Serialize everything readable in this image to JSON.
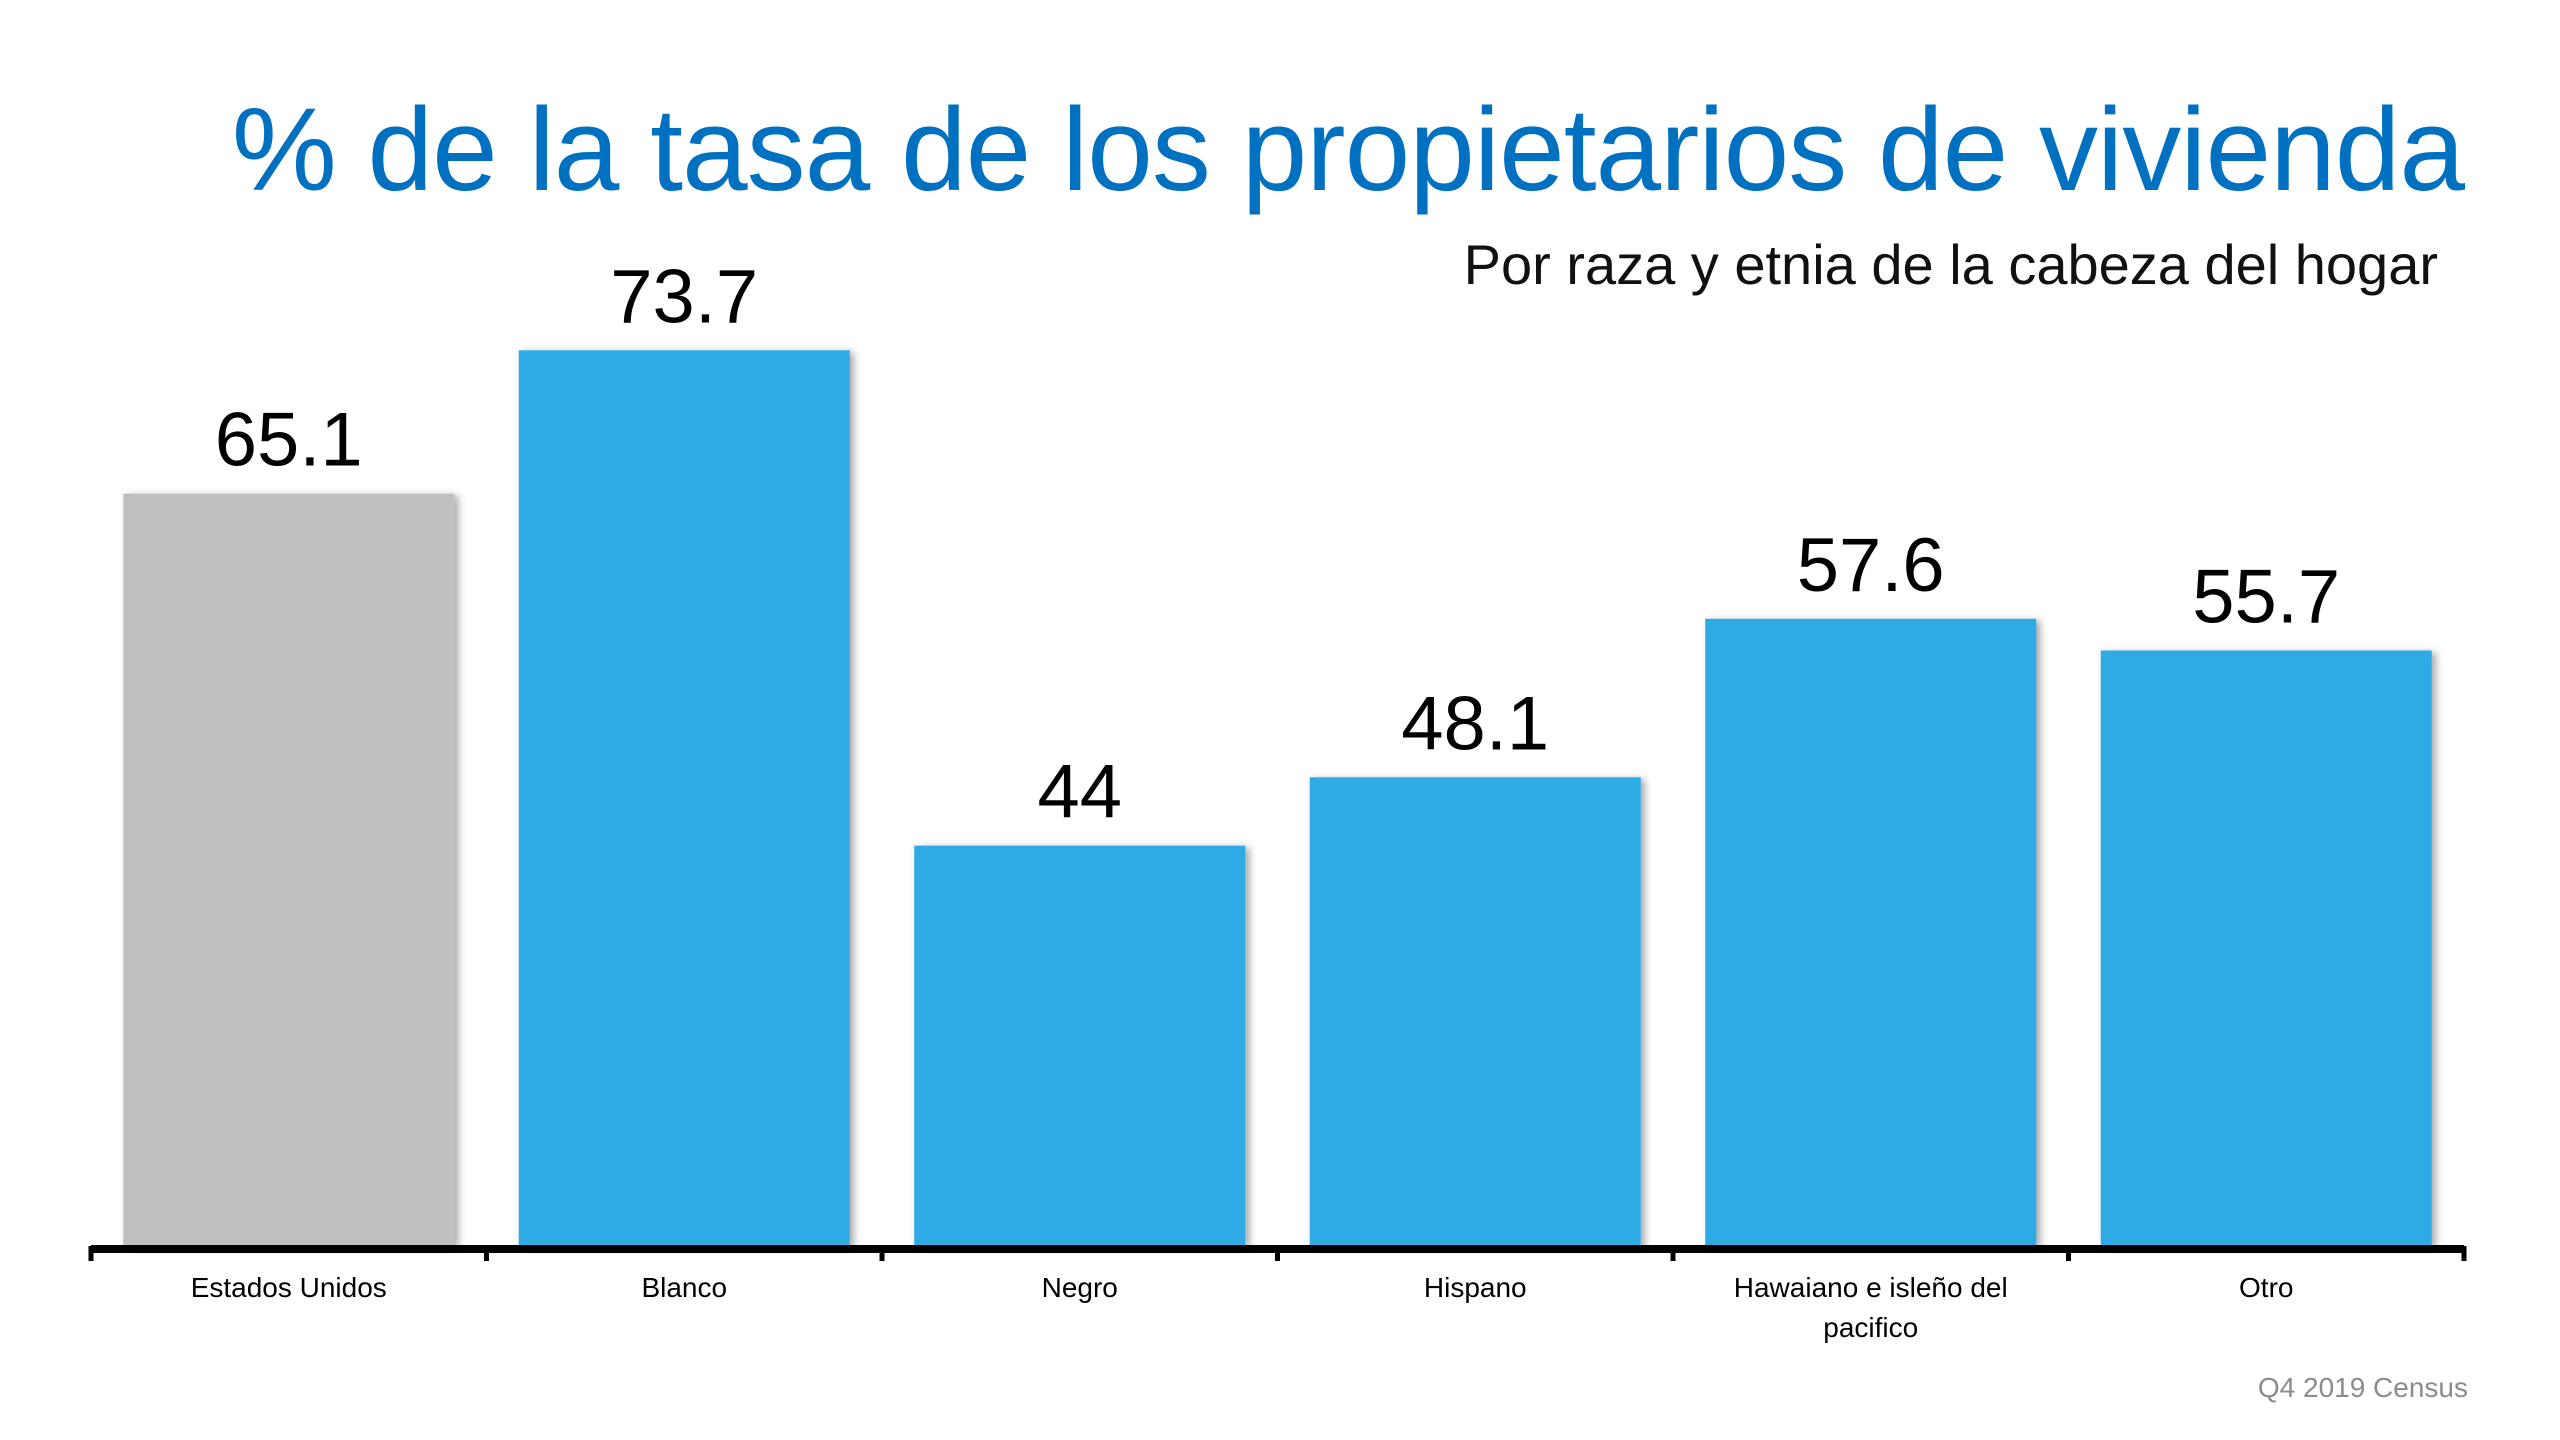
{
  "chart_data": {
    "type": "bar",
    "title": "% de la tasa de los propietarios de vivienda",
    "subtitle": "Por raza y etnia de la cabeza del hogar",
    "source": "Q4 2019 Census",
    "categories": [
      "Estados Unidos",
      "Blanco",
      "Negro",
      "Hispano",
      "Hawaiano e isleño del pacifico",
      "Otro"
    ],
    "category_lines": [
      [
        "Estados Unidos"
      ],
      [
        "Blanco"
      ],
      [
        "Negro"
      ],
      [
        "Hispano"
      ],
      [
        "Hawaiano e isleño del",
        "pacifico"
      ],
      [
        "Otro"
      ]
    ],
    "values": [
      65.1,
      73.7,
      44,
      48.1,
      57.6,
      55.7
    ],
    "value_labels": [
      "65.1",
      "73.7",
      "44",
      "48.1",
      "57.6",
      "55.7"
    ],
    "colors": [
      "#bfbfbf",
      "#2eaae4",
      "#2eaae4",
      "#2eaae4",
      "#2eaae4",
      "#2eaae4"
    ],
    "ylim": [
      20,
      80
    ],
    "grid": false,
    "legend": "none"
  }
}
